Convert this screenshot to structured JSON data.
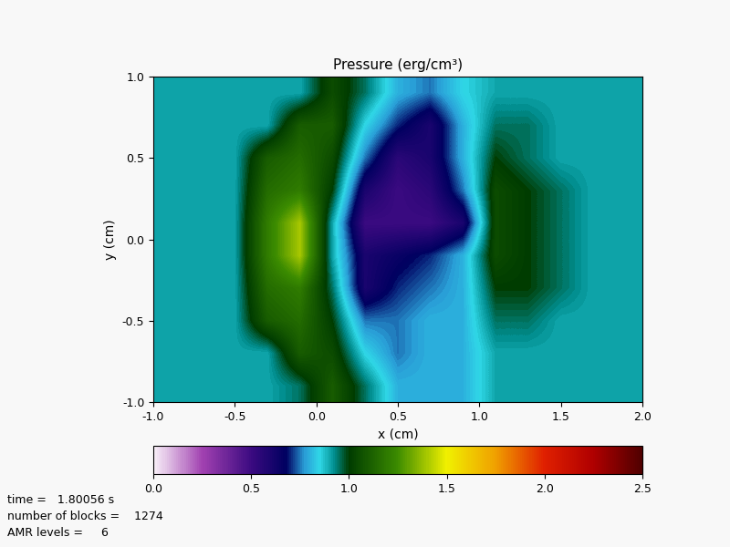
{
  "chart_data": {
    "type": "heatmap",
    "title": "Pressure (erg/cm³)",
    "x_label": "x (cm)",
    "y_label": "y (cm)",
    "xlim": [
      -1.0,
      2.0
    ],
    "ylim": [
      -1.0,
      1.0
    ],
    "xticks": [
      -1.0,
      -0.5,
      0.0,
      0.5,
      1.0,
      1.5,
      2.0
    ],
    "yticks": [
      -1.0,
      -0.5,
      0.0,
      0.5,
      1.0
    ],
    "cells": [
      [
        0.9,
        0.9,
        0.9,
        0.9,
        0.9,
        1.05,
        0.95,
        0.8,
        0.75,
        0.85,
        0.9,
        0.9,
        0.9,
        0.9,
        0.9
      ],
      [
        0.9,
        0.9,
        0.9,
        0.9,
        1.1,
        1.1,
        0.85,
        0.7,
        0.6,
        0.8,
        0.95,
        0.95,
        0.9,
        0.9,
        0.9
      ],
      [
        0.9,
        0.9,
        0.9,
        1.1,
        1.15,
        1.05,
        0.75,
        0.55,
        0.6,
        0.8,
        1.0,
        0.95,
        0.9,
        0.9,
        0.9
      ],
      [
        0.9,
        0.9,
        0.9,
        1.15,
        1.2,
        1.0,
        0.6,
        0.5,
        0.55,
        0.75,
        1.05,
        1.0,
        0.95,
        0.9,
        0.9
      ],
      [
        0.9,
        0.9,
        0.9,
        1.2,
        1.4,
        0.9,
        0.5,
        0.5,
        0.5,
        0.6,
        1.05,
        1.0,
        0.95,
        0.9,
        0.9
      ],
      [
        0.9,
        0.9,
        0.9,
        1.2,
        1.4,
        0.9,
        0.6,
        0.65,
        0.7,
        0.8,
        1.05,
        1.0,
        0.95,
        0.9,
        0.9
      ],
      [
        0.9,
        0.9,
        0.9,
        1.15,
        1.2,
        0.95,
        0.6,
        0.7,
        0.75,
        0.8,
        1.0,
        1.0,
        0.95,
        0.9,
        0.9
      ],
      [
        0.9,
        0.9,
        0.9,
        1.1,
        1.15,
        1.0,
        0.75,
        0.75,
        0.8,
        0.8,
        0.95,
        0.95,
        0.9,
        0.9,
        0.9
      ],
      [
        0.9,
        0.9,
        0.9,
        0.9,
        1.1,
        1.05,
        0.85,
        0.75,
        0.8,
        0.8,
        0.9,
        0.9,
        0.9,
        0.9,
        0.9
      ],
      [
        0.9,
        0.9,
        0.9,
        0.9,
        0.95,
        1.1,
        0.95,
        0.8,
        0.8,
        0.8,
        0.9,
        0.9,
        0.9,
        0.9,
        0.9
      ]
    ],
    "colorbar_range": [
      0.0,
      2.5
    ],
    "colorbar_ticks": [
      0.0,
      0.5,
      1.0,
      1.5,
      2.0,
      2.5
    ],
    "annotations": [
      "time =   1.80056 s",
      "number of blocks =    1274",
      "AMR levels =     6"
    ]
  }
}
